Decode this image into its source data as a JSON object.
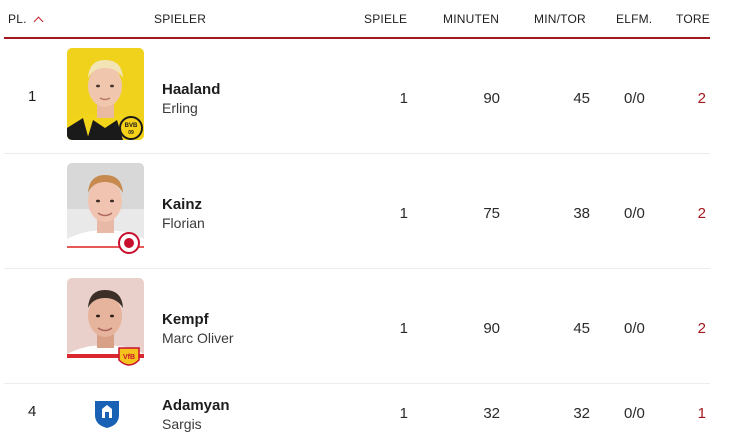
{
  "header": {
    "rank": "PL.",
    "player": "SPIELER",
    "games": "SPIELE",
    "minutes": "MINUTEN",
    "min_per_goal": "MIN/TOR",
    "penalties": "ELFM.",
    "goals": "TORE"
  },
  "rows": [
    {
      "rank": "1",
      "last_name": "Haaland",
      "first_name": "Erling",
      "games": "1",
      "minutes": "90",
      "min_per_goal": "45",
      "penalties": "0/0",
      "goals": "2",
      "club_logo": "bvb-crest-icon"
    },
    {
      "rank": "",
      "last_name": "Kainz",
      "first_name": "Florian",
      "games": "1",
      "minutes": "75",
      "min_per_goal": "38",
      "penalties": "0/0",
      "goals": "2",
      "club_logo": "fc-koeln-crest-icon"
    },
    {
      "rank": "",
      "last_name": "Kempf",
      "first_name": "Marc Oliver",
      "games": "1",
      "minutes": "90",
      "min_per_goal": "45",
      "penalties": "0/0",
      "goals": "2",
      "club_logo": "vfb-crest-icon"
    },
    {
      "rank": "4",
      "last_name": "Adamyan",
      "first_name": "Sargis",
      "games": "1",
      "minutes": "32",
      "min_per_goal": "32",
      "penalties": "0/0",
      "goals": "1",
      "club_logo": "tsg-hoffenheim-crest-icon"
    }
  ],
  "colors": {
    "accent": "#a3181e",
    "sort_arrow": "#c0222a"
  }
}
